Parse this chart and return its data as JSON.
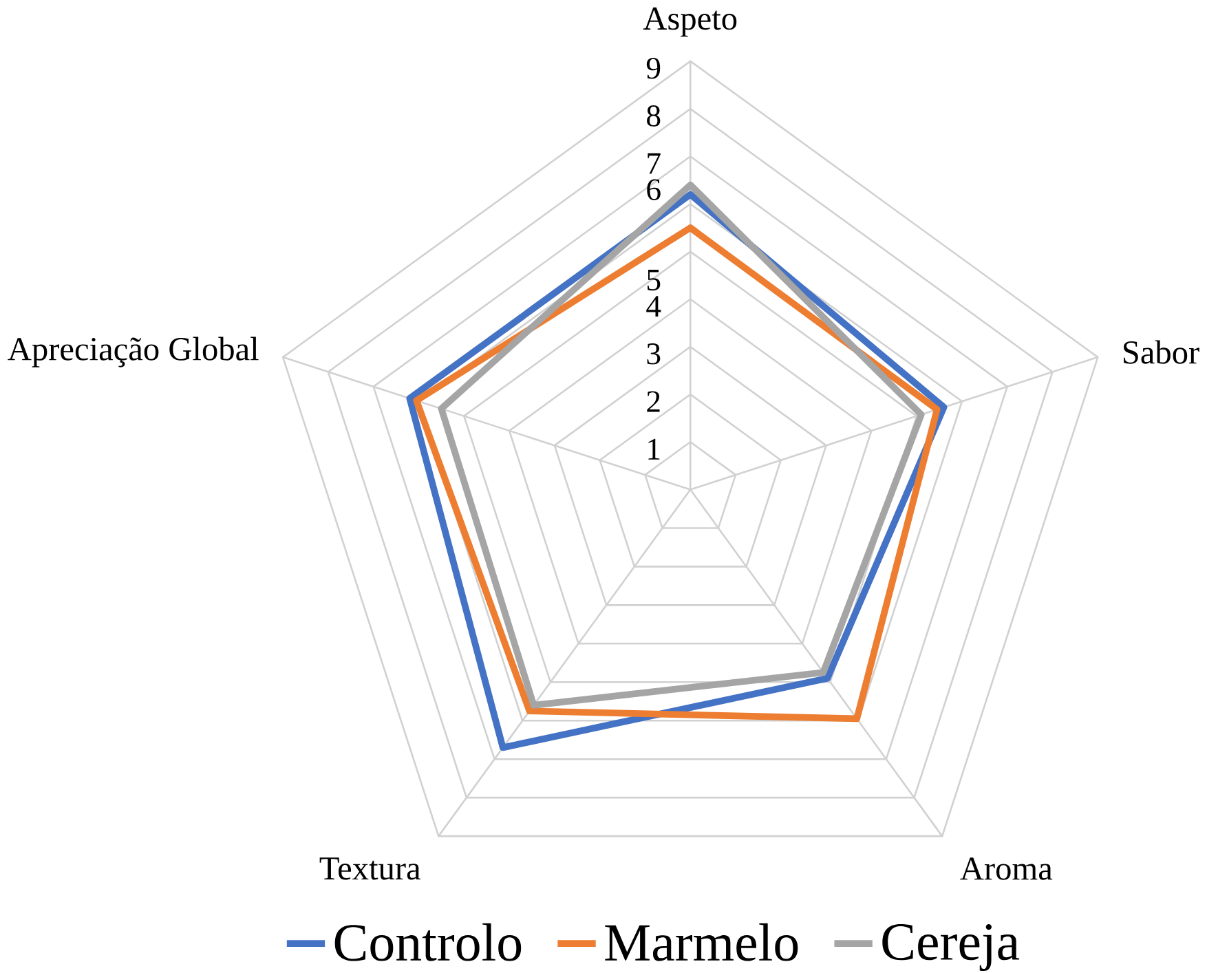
{
  "chart_data": {
    "type": "radar",
    "categories": [
      "Aspeto",
      "Sabor",
      "Aroma",
      "Textura",
      "Apreciação Global"
    ],
    "ylim": [
      0,
      9
    ],
    "yticks": [
      1,
      2,
      3,
      4,
      5,
      6,
      7,
      8,
      9
    ],
    "grid": true,
    "legend": "bottom",
    "series": [
      {
        "name": "Controlo",
        "color": "#4472c4",
        "values": [
          6.2,
          5.6,
          4.9,
          6.7,
          6.2
        ]
      },
      {
        "name": "Marmelo",
        "color": "#ed7d31",
        "values": [
          5.5,
          5.45,
          5.95,
          5.75,
          6.05
        ]
      },
      {
        "name": "Cereja",
        "color": "#a5a5a5",
        "values": [
          6.4,
          5.1,
          4.75,
          5.6,
          5.5
        ]
      }
    ]
  }
}
